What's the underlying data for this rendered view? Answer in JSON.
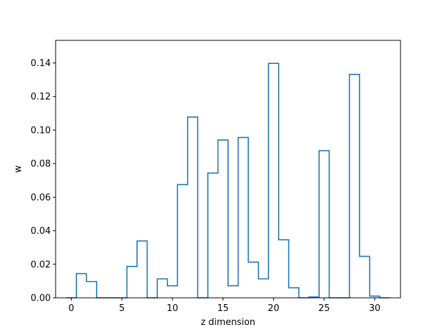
{
  "chart_data": {
    "type": "step",
    "xlabel": "z dimension",
    "ylabel": "w",
    "xlim": [
      -1.55,
      32.55
    ],
    "ylim": [
      0,
      0.1535
    ],
    "x_ticks": [
      0,
      5,
      10,
      15,
      20,
      25,
      30
    ],
    "x_tick_labels": [
      "0",
      "5",
      "10",
      "15",
      "20",
      "25",
      "30"
    ],
    "y_ticks": [
      0.0,
      0.02,
      0.04,
      0.06,
      0.08,
      0.1,
      0.12,
      0.14
    ],
    "y_tick_labels": [
      "0.00",
      "0.02",
      "0.04",
      "0.06",
      "0.08",
      "0.10",
      "0.12",
      "0.14"
    ],
    "grid": false,
    "series": [
      {
        "color": "#1f77b4",
        "x": [
          0,
          1,
          2,
          3,
          4,
          5,
          6,
          7,
          8,
          9,
          10,
          11,
          12,
          13,
          14,
          15,
          16,
          17,
          18,
          19,
          20,
          21,
          22,
          23,
          24,
          25,
          26,
          27,
          28,
          29,
          30,
          31
        ],
        "values": [
          0.0,
          0.0144,
          0.0097,
          0.0,
          0.0,
          0.0,
          0.0187,
          0.0339,
          0.0,
          0.0113,
          0.0072,
          0.0675,
          0.1078,
          0.0,
          0.0744,
          0.0941,
          0.0072,
          0.0956,
          0.0213,
          0.0113,
          0.1398,
          0.0346,
          0.006,
          0.0,
          0.0005,
          0.0877,
          0.0,
          0.0,
          0.1332,
          0.0247,
          0.001,
          0.0
        ]
      }
    ]
  }
}
